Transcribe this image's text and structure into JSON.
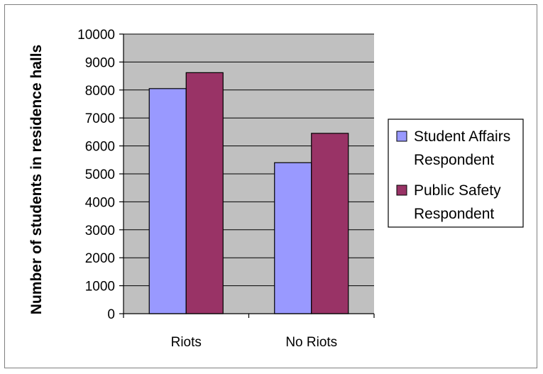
{
  "chart_data": {
    "type": "bar",
    "title": "",
    "xlabel": "",
    "ylabel": "Number of students in residence halls",
    "categories": [
      "Riots",
      "No Riots"
    ],
    "series": [
      {
        "name": "Student Affairs Respondent",
        "values": [
          8050,
          5400
        ],
        "color": "#9999ff"
      },
      {
        "name": "Public Safety Respondent",
        "values": [
          8620,
          6450
        ],
        "color": "#993366"
      }
    ],
    "ylim": [
      0,
      10000
    ],
    "yticks": [
      "0",
      "1000",
      "2000",
      "3000",
      "4000",
      "5000",
      "6000",
      "7000",
      "8000",
      "9000",
      "10000"
    ],
    "grid": true,
    "plot_background": "#c0c0c0",
    "legend": {
      "placement": "right",
      "entries": [
        {
          "line1": "Student Affairs",
          "line2": "Respondent"
        },
        {
          "line1": "Public Safety",
          "line2": "Respondent"
        }
      ]
    }
  }
}
